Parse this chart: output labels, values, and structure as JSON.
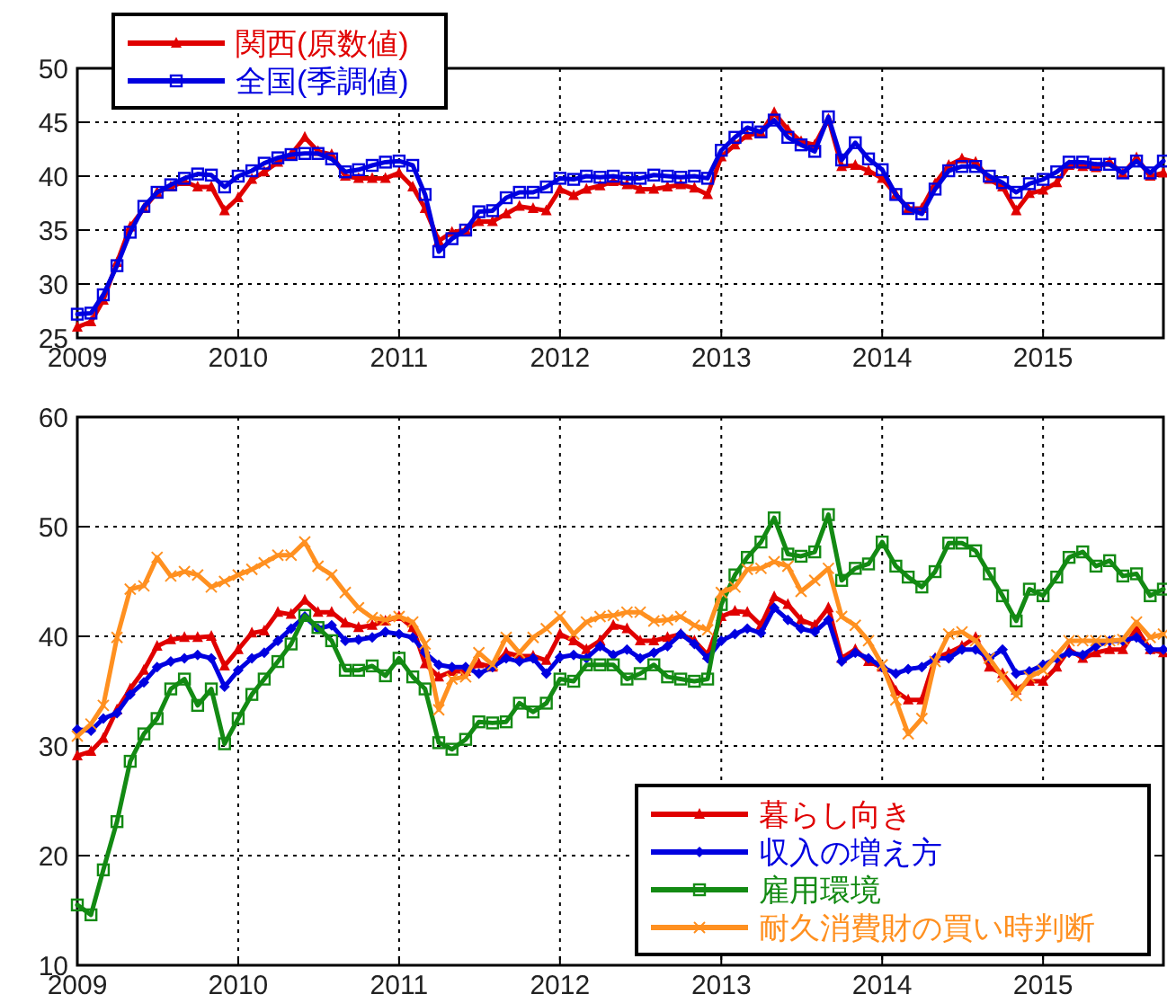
{
  "chart_data": [
    {
      "type": "line",
      "x": [
        "2009-01",
        "2009-02",
        "2009-03",
        "2009-04",
        "2009-05",
        "2009-06",
        "2009-07",
        "2009-08",
        "2009-09",
        "2009-10",
        "2009-11",
        "2009-12",
        "2010-01",
        "2010-02",
        "2010-03",
        "2010-04",
        "2010-05",
        "2010-06",
        "2010-07",
        "2010-08",
        "2010-09",
        "2010-10",
        "2010-11",
        "2010-12",
        "2011-01",
        "2011-02",
        "2011-03",
        "2011-04",
        "2011-05",
        "2011-06",
        "2011-07",
        "2011-08",
        "2011-09",
        "2011-10",
        "2011-11",
        "2011-12",
        "2012-01",
        "2012-02",
        "2012-03",
        "2012-04",
        "2012-05",
        "2012-06",
        "2012-07",
        "2012-08",
        "2012-09",
        "2012-10",
        "2012-11",
        "2012-12",
        "2013-01",
        "2013-02",
        "2013-03",
        "2013-04",
        "2013-05",
        "2013-06",
        "2013-07",
        "2013-08",
        "2013-09",
        "2013-10",
        "2013-11",
        "2013-12",
        "2014-01",
        "2014-02",
        "2014-03",
        "2014-04",
        "2014-05",
        "2014-06",
        "2014-07",
        "2014-08",
        "2014-09",
        "2014-10",
        "2014-11",
        "2014-12",
        "2015-01",
        "2015-02",
        "2015-03",
        "2015-04",
        "2015-05",
        "2015-06",
        "2015-07",
        "2015-08",
        "2015-09",
        "2015-10"
      ],
      "series": [
        {
          "name": "関西(原数値)",
          "color": "#e00000",
          "marker": "triangle",
          "values": [
            26,
            26.5,
            28.5,
            32,
            35.3,
            37,
            38.5,
            39,
            39.5,
            39,
            39,
            36.8,
            38,
            39.7,
            40.4,
            41.3,
            42,
            43.6,
            42.3,
            42,
            40,
            39.8,
            39.8,
            39.8,
            40.3,
            39,
            37,
            34,
            34.8,
            35,
            35.8,
            35.8,
            36.5,
            37.2,
            37,
            36.8,
            38.8,
            38.2,
            38.8,
            39.1,
            39.5,
            39.2,
            38.8,
            38.8,
            39,
            39.2,
            38.9,
            38.3,
            41.8,
            42.9,
            43.8,
            44,
            45.9,
            44.3,
            43.2,
            42.9,
            45.3,
            40.9,
            41,
            40.5,
            39.8,
            38.3,
            37,
            37,
            39.3,
            41,
            41.6,
            41.3,
            39.7,
            39,
            36.8,
            38.4,
            38.7,
            39.4,
            41,
            40.9,
            40.8,
            41.3,
            40.2,
            41.7,
            40,
            40.3
          ]
        },
        {
          "name": "全国(季調値)",
          "color": "#0000e0",
          "marker": "square",
          "values": [
            27.2,
            27.3,
            29,
            31.7,
            34.8,
            37.2,
            38.5,
            39.2,
            39.8,
            40.2,
            40.1,
            39,
            40,
            40.5,
            41.2,
            41.7,
            42,
            42.1,
            42.1,
            41.6,
            40.4,
            40.6,
            41,
            41.3,
            41.4,
            41,
            38.3,
            33,
            34.2,
            35,
            36.7,
            36.8,
            38,
            38.5,
            38.5,
            39,
            39.8,
            39.7,
            40,
            39.9,
            40,
            39.8,
            39.8,
            40.1,
            40,
            39.9,
            40,
            39.8,
            42.4,
            43.6,
            44.5,
            44.1,
            45.2,
            43.6,
            42.9,
            42.3,
            45.5,
            41.5,
            43.1,
            41.6,
            40.6,
            38.3,
            37,
            36.5,
            38.8,
            40.5,
            40.9,
            40.9,
            40,
            39.4,
            38.5,
            39.3,
            39.7,
            40.4,
            41.3,
            41.3,
            41.1,
            41.1,
            40.3,
            41.4,
            40.3,
            41.4
          ]
        }
      ],
      "xlim": [
        "2009-01",
        "2015-10"
      ],
      "xticks": [
        {
          "value": "2009-01",
          "label": "2009"
        },
        {
          "value": "2010-01",
          "label": "2010"
        },
        {
          "value": "2011-01",
          "label": "2011"
        },
        {
          "value": "2012-01",
          "label": "2012"
        },
        {
          "value": "2013-01",
          "label": "2013"
        },
        {
          "value": "2014-01",
          "label": "2014"
        },
        {
          "value": "2015-01",
          "label": "2015"
        }
      ],
      "ylim": [
        25,
        50
      ],
      "yticks": [
        25,
        30,
        35,
        40,
        45,
        50
      ],
      "grid": true,
      "legend": "top left"
    },
    {
      "type": "line",
      "x": [
        "2009-01",
        "2009-02",
        "2009-03",
        "2009-04",
        "2009-05",
        "2009-06",
        "2009-07",
        "2009-08",
        "2009-09",
        "2009-10",
        "2009-11",
        "2009-12",
        "2010-01",
        "2010-02",
        "2010-03",
        "2010-04",
        "2010-05",
        "2010-06",
        "2010-07",
        "2010-08",
        "2010-09",
        "2010-10",
        "2010-11",
        "2010-12",
        "2011-01",
        "2011-02",
        "2011-03",
        "2011-04",
        "2011-05",
        "2011-06",
        "2011-07",
        "2011-08",
        "2011-09",
        "2011-10",
        "2011-11",
        "2011-12",
        "2012-01",
        "2012-02",
        "2012-03",
        "2012-04",
        "2012-05",
        "2012-06",
        "2012-07",
        "2012-08",
        "2012-09",
        "2012-10",
        "2012-11",
        "2012-12",
        "2013-01",
        "2013-02",
        "2013-03",
        "2013-04",
        "2013-05",
        "2013-06",
        "2013-07",
        "2013-08",
        "2013-09",
        "2013-10",
        "2013-11",
        "2013-12",
        "2014-01",
        "2014-02",
        "2014-03",
        "2014-04",
        "2014-05",
        "2014-06",
        "2014-07",
        "2014-08",
        "2014-09",
        "2014-10",
        "2014-11",
        "2014-12",
        "2015-01",
        "2015-02",
        "2015-03",
        "2015-04",
        "2015-05",
        "2015-06",
        "2015-07",
        "2015-08",
        "2015-09",
        "2015-10"
      ],
      "series": [
        {
          "name": "暮らし向き",
          "color": "#e00000",
          "marker": "triangle",
          "values": [
            29.1,
            29.5,
            30.7,
            33.3,
            35.2,
            36.9,
            39.1,
            39.7,
            39.9,
            39.9,
            40,
            37.3,
            38.8,
            40.3,
            40.5,
            42.2,
            42,
            43.3,
            42.2,
            42.2,
            41.2,
            40.8,
            41,
            41.4,
            41.8,
            40.8,
            37.5,
            36.3,
            36.8,
            36.8,
            37.5,
            37.2,
            38.5,
            38.2,
            38.2,
            37.8,
            40.2,
            39.6,
            38.8,
            39.6,
            41,
            40.7,
            39.6,
            39.6,
            39.9,
            40.2,
            39.6,
            38.3,
            41.8,
            42.3,
            42.2,
            41,
            43.6,
            42.9,
            41.5,
            41,
            42.6,
            38,
            38.8,
            37.7,
            37.2,
            35,
            34.2,
            34.2,
            38,
            38.5,
            39.1,
            39.9,
            37.2,
            36.6,
            35.1,
            35.9,
            35.9,
            37.2,
            38.8,
            38,
            38.5,
            38.8,
            38.8,
            40.7,
            38.8,
            38.5
          ]
        },
        {
          "name": "収入の増え方",
          "color": "#0000e0",
          "marker": "diamond",
          "values": [
            31.5,
            31.4,
            32.5,
            33,
            34.7,
            35.8,
            37.2,
            37.7,
            38,
            38.3,
            38,
            35.4,
            36.9,
            38,
            38.5,
            39.6,
            40.7,
            41.8,
            40.7,
            41,
            39.6,
            39.7,
            39.9,
            40.4,
            40.2,
            39.9,
            38.5,
            37.4,
            37.2,
            37.2,
            36.6,
            37.2,
            38,
            37.7,
            38,
            36.6,
            38.1,
            38.3,
            38,
            39.1,
            38.3,
            38.8,
            38,
            38.5,
            39.1,
            40.2,
            39.3,
            38,
            39.6,
            40.2,
            40.7,
            40.3,
            42.6,
            41.5,
            40.7,
            40.4,
            41.5,
            37.7,
            38.5,
            38,
            37.2,
            36.6,
            37,
            37.2,
            38,
            38,
            38.8,
            38.8,
            38,
            38.8,
            36.6,
            36.8,
            37.4,
            38,
            38.5,
            38.3,
            39.1,
            39.6,
            39.6,
            39.9,
            38.8,
            38.8
          ]
        },
        {
          "name": "雇用環境",
          "color": "#138a13",
          "marker": "square",
          "values": [
            15.5,
            14.6,
            18.7,
            23.1,
            28.6,
            31.1,
            32.5,
            35.2,
            36.1,
            33.7,
            35.2,
            30.2,
            32.5,
            34.7,
            36.1,
            37.7,
            39.3,
            41.9,
            40.8,
            39.6,
            36.9,
            36.9,
            37.3,
            36.4,
            38,
            36.3,
            35.2,
            30.3,
            29.7,
            30.6,
            32.2,
            32.1,
            32.2,
            33.9,
            33.1,
            33.9,
            36.1,
            35.9,
            37.4,
            37.4,
            37.4,
            36.1,
            36.6,
            37.4,
            36.3,
            36.1,
            35.9,
            36.1,
            42.9,
            45.6,
            47.2,
            48.6,
            50.8,
            47.5,
            47.3,
            47.7,
            51.1,
            45.1,
            46.2,
            46.6,
            48.6,
            46.4,
            45.4,
            44.5,
            45.9,
            48.5,
            48.5,
            47.8,
            45.7,
            43.7,
            41.4,
            44.3,
            43.7,
            45.4,
            47.2,
            47.7,
            46.4,
            46.9,
            45.5,
            45.7,
            43.7,
            44.3
          ]
        },
        {
          "name": "耐久消費財の買い時判断",
          "color": "#ff9020",
          "marker": "cross",
          "values": [
            30.9,
            32,
            33.7,
            39.9,
            44.3,
            44.6,
            47.2,
            45.5,
            45.9,
            45.6,
            44.5,
            45,
            45.6,
            46.1,
            46.7,
            47.4,
            47.4,
            48.6,
            46.4,
            45.6,
            44,
            42.6,
            41.7,
            41.5,
            41.8,
            41.3,
            39.3,
            33.3,
            36.1,
            36.3,
            38.5,
            37.4,
            39.9,
            38.5,
            39.9,
            40.7,
            41.8,
            40.2,
            41.3,
            41.8,
            41.9,
            42.2,
            42.2,
            41.4,
            41.5,
            41.8,
            41,
            40.6,
            44,
            44.5,
            46.1,
            46.2,
            46.8,
            46.4,
            44.1,
            45.1,
            46.2,
            41.8,
            41,
            39.6,
            37.4,
            34.2,
            31.1,
            32.5,
            37.7,
            40.2,
            40.4,
            39.6,
            38,
            36.3,
            34.6,
            36.3,
            36.9,
            38.3,
            39.6,
            39.6,
            39.6,
            39.6,
            39.7,
            41.3,
            39.9,
            40.2
          ]
        }
      ],
      "xlim": [
        "2009-01",
        "2015-10"
      ],
      "xticks": [
        {
          "value": "2009-01",
          "label": "2009"
        },
        {
          "value": "2010-01",
          "label": "2010"
        },
        {
          "value": "2011-01",
          "label": "2011"
        },
        {
          "value": "2012-01",
          "label": "2012"
        },
        {
          "value": "2013-01",
          "label": "2013"
        },
        {
          "value": "2014-01",
          "label": "2014"
        },
        {
          "value": "2015-01",
          "label": "2015"
        }
      ],
      "ylim": [
        10,
        60
      ],
      "yticks": [
        10,
        20,
        30,
        40,
        50,
        60
      ],
      "grid": true,
      "legend": "bottom right"
    }
  ]
}
